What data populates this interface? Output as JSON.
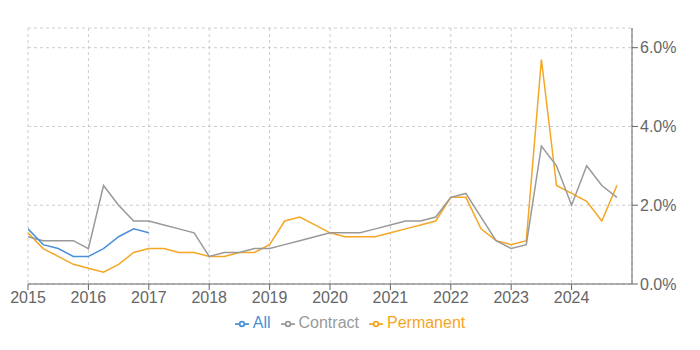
{
  "chart_data": {
    "type": "line",
    "x": [
      2015.0,
      2015.25,
      2015.5,
      2015.75,
      2016.0,
      2016.25,
      2016.5,
      2016.75,
      2017.0,
      2017.25,
      2017.5,
      2017.75,
      2018.0,
      2018.25,
      2018.5,
      2018.75,
      2019.0,
      2019.25,
      2019.5,
      2019.75,
      2020.0,
      2020.25,
      2020.5,
      2020.75,
      2021.0,
      2021.25,
      2021.5,
      2021.75,
      2022.0,
      2022.25,
      2022.5,
      2022.75,
      2023.0,
      2023.25,
      2023.5,
      2023.75,
      2024.0,
      2024.25,
      2024.5,
      2024.75
    ],
    "series": [
      {
        "name": "Permanent",
        "color": "#f5a623",
        "values": [
          0.013,
          0.009,
          0.007,
          0.005,
          0.004,
          0.003,
          0.005,
          0.008,
          0.009,
          0.009,
          0.008,
          0.008,
          0.007,
          0.007,
          0.008,
          0.008,
          0.01,
          0.016,
          0.017,
          0.015,
          0.013,
          0.012,
          0.012,
          0.012,
          0.013,
          0.014,
          0.015,
          0.016,
          0.022,
          0.022,
          0.014,
          0.011,
          0.01,
          0.011,
          0.057,
          0.025,
          0.023,
          0.021,
          0.016,
          0.025
        ]
      },
      {
        "name": "Contract",
        "color": "#999999",
        "values": [
          0.012,
          0.011,
          0.011,
          0.011,
          0.009,
          0.025,
          0.02,
          0.016,
          0.016,
          0.015,
          0.014,
          0.013,
          0.007,
          0.008,
          0.008,
          0.009,
          0.009,
          0.01,
          0.011,
          0.012,
          0.013,
          0.013,
          0.013,
          0.014,
          0.015,
          0.016,
          0.016,
          0.017,
          0.022,
          0.023,
          0.017,
          0.011,
          0.009,
          0.01,
          0.035,
          0.03,
          0.02,
          0.03,
          0.025,
          0.022
        ]
      },
      {
        "name": "All",
        "color": "#4a90d9",
        "values": [
          0.014,
          0.01,
          0.009,
          0.007,
          0.007,
          0.009,
          0.012,
          0.014,
          0.013,
          null,
          null,
          null,
          null,
          null,
          null,
          null,
          null,
          null,
          null,
          null,
          null,
          null,
          null,
          null,
          null,
          null,
          null,
          null,
          null,
          null,
          null,
          null,
          null,
          null,
          null,
          null,
          null,
          null,
          null,
          null
        ]
      }
    ],
    "xlim": [
      2015.0,
      2025.0
    ],
    "xticks": [
      2015,
      2016,
      2017,
      2018,
      2019,
      2020,
      2021,
      2022,
      2023,
      2024
    ],
    "ylim": [
      0.0,
      0.065
    ],
    "yticks": [
      {
        "value": 0.0,
        "label": "0.0%"
      },
      {
        "value": 0.02,
        "label": "2.0%"
      },
      {
        "value": 0.04,
        "label": "4.0%"
      },
      {
        "value": 0.06,
        "label": "6.0%"
      }
    ],
    "grid": true,
    "legend": "bottom"
  }
}
